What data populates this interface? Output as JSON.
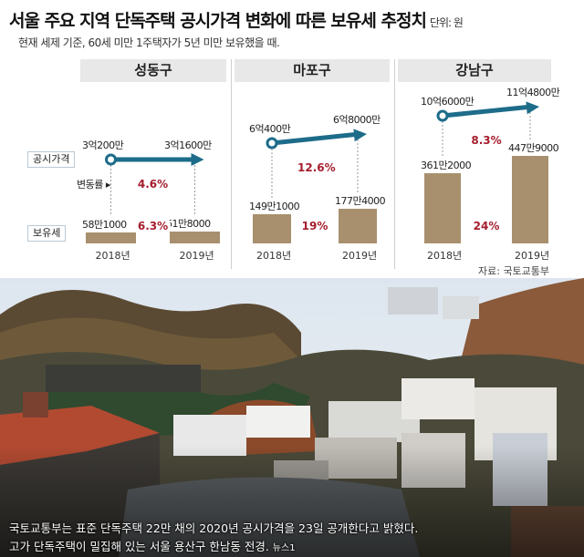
{
  "header": {
    "title": "서울 주요 지역 단독주택 공시가격 변화에 따른 보유세 추정치",
    "unit": "단위: 원",
    "subtitle": "현재 세제 기준, 60세 미만 1주택자가 5년 미만 보유했을 때."
  },
  "legend_labels": {
    "price": "공시가격",
    "change": "변동률",
    "tax": "보유세"
  },
  "source": "자료: 국토교통부",
  "colors": {
    "bar": "#a8906e",
    "arrow": "#1d6c8a",
    "percent": "#a51d2d",
    "panel_header": "#e8e8e8"
  },
  "chart_data": {
    "type": "bar",
    "unit": "원",
    "categories": [
      "2018년",
      "2019년"
    ],
    "panels": [
      {
        "name": "성동구",
        "price_labels": [
          "3억200만",
          "3억1600만"
        ],
        "price_values": [
          302000000,
          316000000
        ],
        "price_change": "4.6%",
        "tax_labels": [
          "58만1000",
          "61만8000"
        ],
        "tax_values": [
          581000,
          618000
        ],
        "tax_change": "6.3%"
      },
      {
        "name": "마포구",
        "price_labels": [
          "6억400만",
          "6억8000만"
        ],
        "price_values": [
          604000000,
          680000000
        ],
        "price_change": "12.6%",
        "tax_labels": [
          "149만1000",
          "177만4000"
        ],
        "tax_values": [
          1491000,
          1774000
        ],
        "tax_change": "19%"
      },
      {
        "name": "강남구",
        "price_labels": [
          "10억6000만",
          "11억4800만"
        ],
        "price_values": [
          1060000000,
          1148000000
        ],
        "price_change": "8.3%",
        "tax_labels": [
          "361만2000",
          "447만9000"
        ],
        "tax_values": [
          3612000,
          4479000
        ],
        "tax_change": "24%"
      }
    ]
  },
  "photo": {
    "caption_line1": "국토교통부는 표준 단독주택 22만 채의 2020년 공시가격을 23일 공개한다고 밝혔다.",
    "caption_line2": "고가 단독주택이 밀집해 있는 서울 용산구 한남동 전경.",
    "credit": "뉴스1"
  }
}
